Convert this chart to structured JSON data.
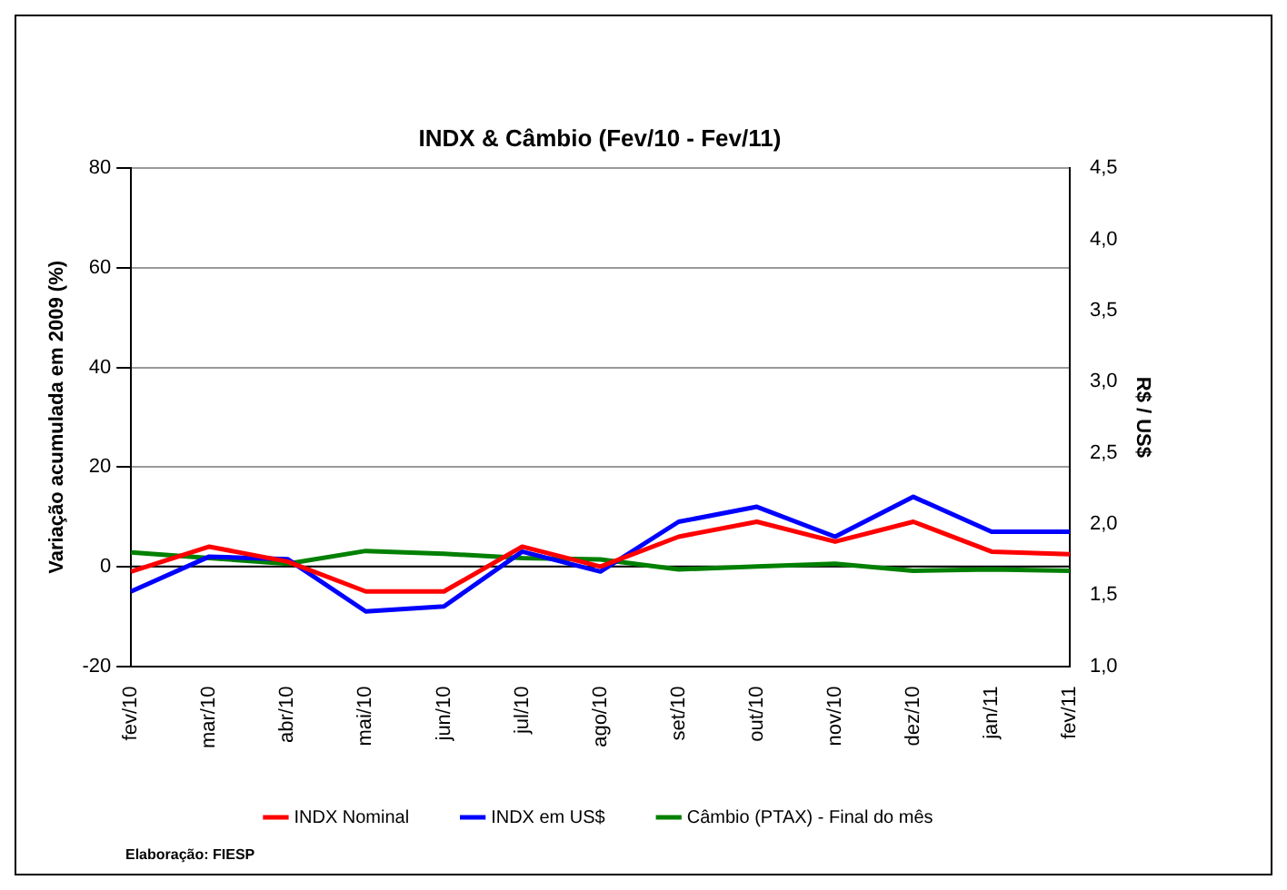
{
  "chart_data": {
    "type": "line",
    "title": "INDX & Câmbio (Fev/10 - Fev/11)",
    "ylabel": "Variação acumulada em 2009 (%)",
    "y2label": "R$ / US$",
    "categories": [
      "fev/10",
      "mar/10",
      "abr/10",
      "mai/10",
      "jun/10",
      "jul/10",
      "ago/10",
      "set/10",
      "out/10",
      "nov/10",
      "dez/10",
      "jan/11",
      "fev/11"
    ],
    "series": [
      {
        "name": "INDX Nominal",
        "color": "#ff0000",
        "values": [
          -1,
          4,
          1,
          -5,
          -5,
          4,
          0,
          6,
          9,
          5,
          9,
          3,
          2.5
        ]
      },
      {
        "name": "INDX em US$",
        "color": "#0000ff",
        "values": [
          -5,
          2,
          1.5,
          -9,
          -8,
          3,
          -1,
          9,
          12,
          6,
          14,
          7,
          7
        ]
      },
      {
        "name": "Câmbio (PTAX) - Final do mês",
        "color": "#008000",
        "axis": "y2",
        "values": [
          1.8,
          1.76,
          1.72,
          1.81,
          1.79,
          1.76,
          1.75,
          1.68,
          1.7,
          1.72,
          1.67,
          1.68,
          1.67
        ]
      }
    ],
    "ylim": [
      -20,
      80
    ],
    "yticks": [
      -20,
      0,
      20,
      40,
      60,
      80
    ],
    "y2lim": [
      1,
      4.5
    ],
    "y2ticks": [
      {
        "value": 1,
        "label": "1,0"
      },
      {
        "value": 1.5,
        "label": "1,5"
      },
      {
        "value": 2,
        "label": "2,0"
      },
      {
        "value": 2.5,
        "label": "2,5"
      },
      {
        "value": 3,
        "label": "3,0"
      },
      {
        "value": 3.5,
        "label": "3,5"
      },
      {
        "value": 4,
        "label": "4,0"
      },
      {
        "value": 4.5,
        "label": "4,5"
      }
    ],
    "ref_lines": [
      {
        "axis": "y",
        "value": 0,
        "color": "#000000"
      }
    ],
    "grid": "y",
    "legend": "bottom",
    "marker": "none",
    "line_style": "solid",
    "annotations": [
      "Elaboração: FIESP"
    ]
  }
}
